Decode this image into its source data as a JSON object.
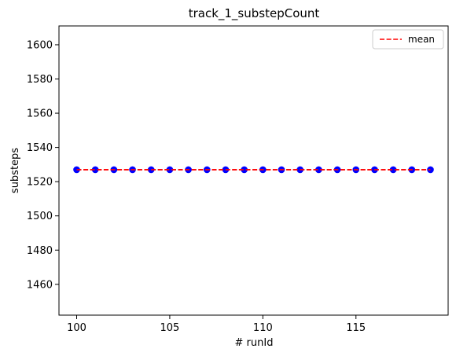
{
  "chart_data": {
    "type": "scatter",
    "title": "track_1_substepCount",
    "xlabel": "# runId",
    "ylabel": "substeps",
    "xlim": [
      99.05,
      119.95
    ],
    "ylim": [
      1442,
      1611
    ],
    "xticks": [
      100,
      105,
      110,
      115
    ],
    "yticks": [
      1460,
      1480,
      1500,
      1520,
      1540,
      1560,
      1580,
      1600
    ],
    "grid": false,
    "legend_position": "top-right",
    "series": [
      {
        "kind": "points",
        "color": "#0000ff",
        "x": [
          100,
          101,
          102,
          103,
          104,
          105,
          106,
          107,
          108,
          109,
          110,
          111,
          112,
          113,
          114,
          115,
          116,
          117,
          118,
          119
        ],
        "y": [
          1527,
          1527,
          1527,
          1527,
          1527,
          1527,
          1527,
          1527,
          1527,
          1527,
          1527,
          1527,
          1527,
          1527,
          1527,
          1527,
          1527,
          1527,
          1527,
          1527
        ]
      },
      {
        "kind": "line",
        "name": "mean",
        "style": "dashed",
        "color": "#ff0000",
        "x": [
          100,
          119
        ],
        "y": [
          1527,
          1527
        ]
      }
    ]
  }
}
